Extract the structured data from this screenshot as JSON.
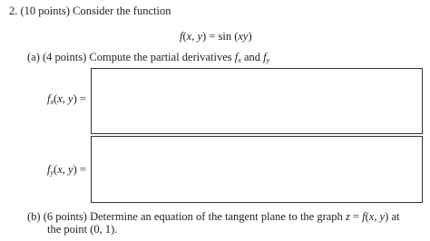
{
  "question": {
    "heading": "2. (10 points) Consider the function",
    "formula": [
      "f",
      "(",
      "x",
      ", ",
      "y",
      ") = sin (",
      "xy",
      ")"
    ],
    "part_a": {
      "text": "(a) (4 points) Compute the partial derivatives ",
      "fx": [
        "f",
        "x"
      ],
      "and": " and ",
      "fy": [
        "f",
        "y"
      ]
    },
    "answer_x": [
      "f",
      "x",
      "(",
      "x",
      ", ",
      "y",
      ") ="
    ],
    "answer_y": [
      "f",
      "y",
      "(",
      "x",
      ", ",
      "y",
      ") ="
    ],
    "part_b": {
      "line1a": "(b) (6 points) Determine an equation of the tangent plane to the graph ",
      "z": "z",
      "eq": " = ",
      "f": "f",
      "args1": "(",
      "x": "x",
      "comma": ", ",
      "y": "y",
      "args2": ") at",
      "line2": "the point (0, 1)."
    }
  }
}
